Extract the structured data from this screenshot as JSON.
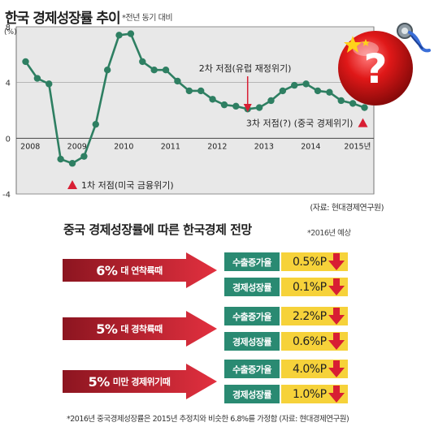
{
  "header": {
    "title": "한국 경제성장률 추이",
    "title_note": "*전년 동기 대비"
  },
  "chart_data": {
    "type": "line",
    "y_unit_label": "(%)",
    "ylim": [
      -4,
      8
    ],
    "y_ticks": [
      "8",
      "4",
      "0",
      "-4"
    ],
    "x_tick_labels": [
      "2008",
      "2009",
      "2010",
      "2011",
      "2012",
      "2013",
      "2014",
      "2015년"
    ],
    "x": [
      2008.0,
      2008.25,
      2008.5,
      2008.75,
      2009.0,
      2009.25,
      2009.5,
      2009.75,
      2010.0,
      2010.25,
      2010.5,
      2010.75,
      2011.0,
      2011.25,
      2011.5,
      2011.75,
      2012.0,
      2012.25,
      2012.5,
      2012.75,
      2013.0,
      2013.25,
      2013.5,
      2013.75,
      2014.0,
      2014.25,
      2014.5,
      2014.75,
      2015.0,
      2015.25
    ],
    "values": [
      5.5,
      4.3,
      3.9,
      -1.5,
      -1.8,
      -1.3,
      1.0,
      4.9,
      7.4,
      7.5,
      5.5,
      4.9,
      4.9,
      4.1,
      3.4,
      3.4,
      2.8,
      2.4,
      2.3,
      2.1,
      2.2,
      2.7,
      3.4,
      3.8,
      3.9,
      3.4,
      3.3,
      2.7,
      2.5,
      2.2
    ],
    "grid": "horizontal",
    "color": "#2e7f62",
    "annotations": [
      {
        "text": "1차 저점(미국 금융위기)",
        "x": 2009.0,
        "y": -1.8
      },
      {
        "text": "2차 저점(유럽 재정위기)",
        "x": 2012.75,
        "y": 2.1
      },
      {
        "text": "3차 저점(?) (중국 경제위기)",
        "x": 2015.25,
        "y": 2.2
      }
    ],
    "source": "(자료: 현대경제연구원)"
  },
  "outlook": {
    "title": "중국 경제성장률에 따른 한국경제 전망",
    "note": "*2016년 예상",
    "scenarios": [
      {
        "pct": "6%",
        "label": "대 연착륙때",
        "rows": [
          {
            "name": "수출증가율",
            "value": "0.5%P"
          },
          {
            "name": "경제성장률",
            "value": "0.1%P"
          }
        ]
      },
      {
        "pct": "5%",
        "label": "대 경착륙때",
        "rows": [
          {
            "name": "수출증가율",
            "value": "2.2%P"
          },
          {
            "name": "경제성장률",
            "value": "0.6%P"
          }
        ]
      },
      {
        "pct": "5%",
        "label": "미만 경제위기때",
        "rows": [
          {
            "name": "수출증가율",
            "value": "4.0%P"
          },
          {
            "name": "경제성장률",
            "value": "1.0%P"
          }
        ]
      }
    ],
    "footnote": "*2016년 중국경제성장률은 2015년 추정치와 비슷한 6.8%를 가정함 (자료: 현대경제연구원)"
  },
  "colors": {
    "line": "#2e7f62",
    "marker": "#d81e33",
    "arrow_dark": "#8c1520",
    "arrow_light": "#e2303f",
    "row_name_bg": "#2a8a72",
    "row_value_bg": "#f6d23a"
  }
}
